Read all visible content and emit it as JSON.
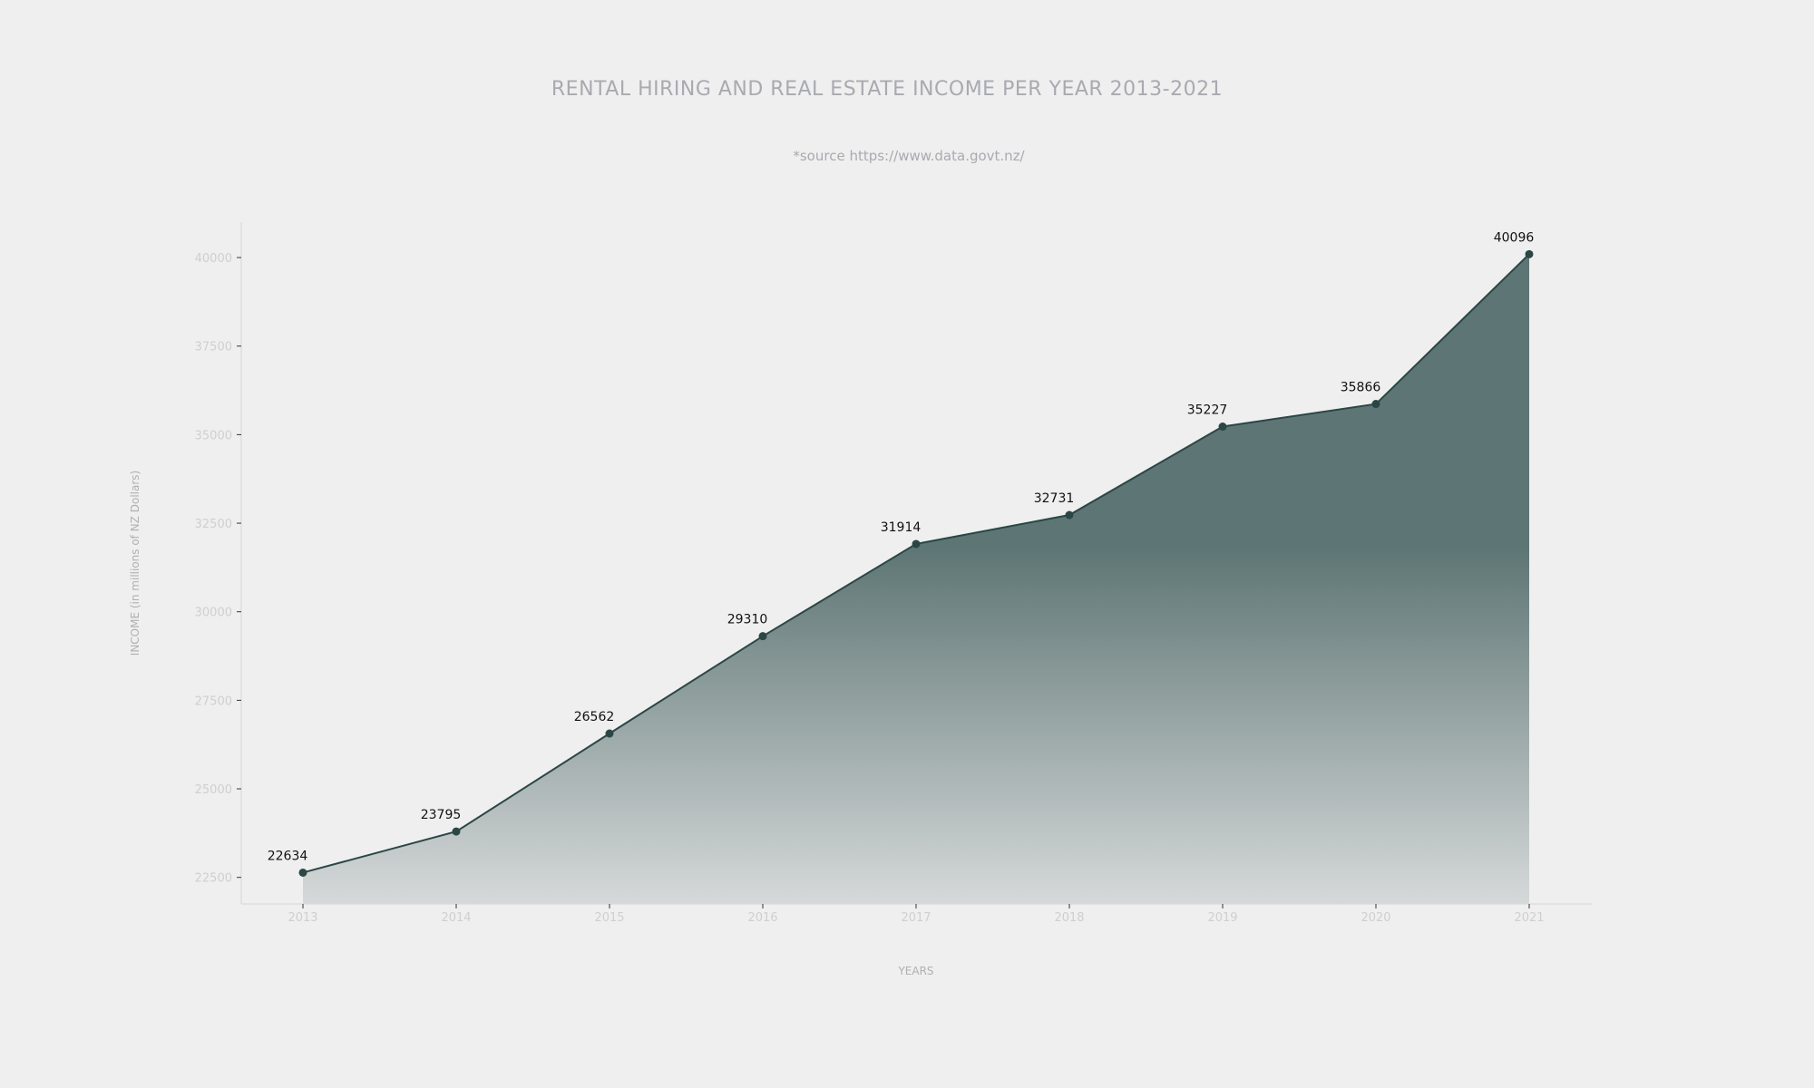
{
  "chart_data": {
    "type": "area",
    "title": "RENTAL HIRING AND REAL ESTATE INCOME PER YEAR 2013-2021",
    "subtitle": "*source https://www.data.govt.nz/",
    "xlabel": "YEARS",
    "ylabel": "INCOME (in millions of NZ Dollars)",
    "categories": [
      "2013",
      "2014",
      "2015",
      "2016",
      "2017",
      "2018",
      "2019",
      "2020",
      "2021"
    ],
    "values": [
      22634,
      23795,
      26562,
      29310,
      31914,
      32731,
      35227,
      35866,
      40096
    ],
    "data_labels": [
      "22634",
      "23795",
      "26562",
      "29310",
      "31914",
      "32731",
      "35227",
      "35866",
      "40096"
    ],
    "yticks": [
      22500,
      25000,
      27500,
      30000,
      32500,
      35000,
      37500,
      40000
    ],
    "ytick_labels": [
      "22500",
      "25000",
      "27500",
      "30000",
      "32500",
      "35000",
      "37500",
      "40000"
    ],
    "ylim": [
      21750,
      41000
    ],
    "grid": false,
    "legend": "none",
    "colors": {
      "line": "#2b4745",
      "fill_top": "#5d7574",
      "fill_bottom": "#d6d9d9",
      "background": "#efefef"
    }
  }
}
